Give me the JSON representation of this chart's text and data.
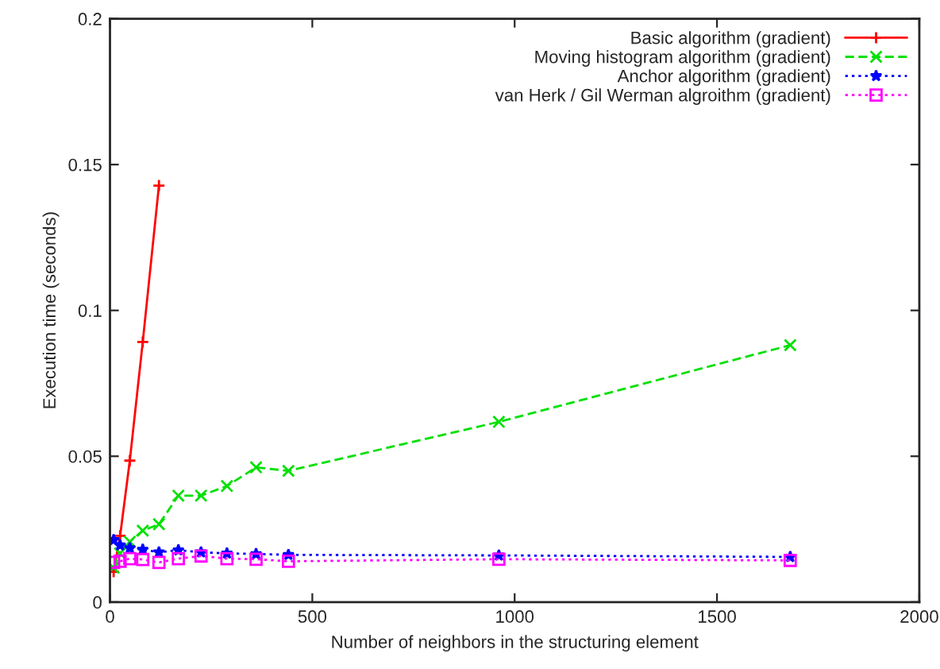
{
  "chart_data": {
    "type": "line",
    "xlabel": "Number of neighbors in the structuring element",
    "ylabel": "Execution time (seconds)",
    "x": [
      9,
      25,
      49,
      81,
      121,
      169,
      225,
      289,
      361,
      441,
      961,
      1681
    ],
    "series": [
      {
        "name": "Basic algorithm (gradient)",
        "color": "#ff0000",
        "marker": "cross",
        "line_style": "solid",
        "values": [
          0.0104,
          0.0227,
          0.0485,
          0.0892,
          0.1428,
          null,
          null,
          null,
          null,
          null,
          null,
          null
        ]
      },
      {
        "name": "Moving histogram algorithm (gradient)",
        "color": "#00e000",
        "marker": "x",
        "line_style": "dashed",
        "values": [
          0.0118,
          0.0167,
          0.0207,
          0.0245,
          0.0267,
          0.0365,
          0.0365,
          0.0398,
          0.0462,
          0.045,
          0.0618,
          0.0881
        ]
      },
      {
        "name": "Anchor algorithm (gradient)",
        "color": "#0000ff",
        "marker": "star",
        "line_style": "dotted",
        "values": [
          0.0213,
          0.0195,
          0.0185,
          0.018,
          0.0171,
          0.0178,
          0.0171,
          0.0167,
          0.0165,
          0.0162,
          0.016,
          0.0155
        ]
      },
      {
        "name": "van Herk / Gil Werman algroithm (gradient)",
        "color": "#ff00ff",
        "marker": "square",
        "line_style": "dotted",
        "values": [
          0.0136,
          0.014,
          0.0149,
          0.0146,
          0.0136,
          0.0149,
          0.0158,
          0.0149,
          0.0147,
          0.014,
          0.0147,
          0.0143
        ]
      }
    ],
    "xlim": [
      0,
      2000
    ],
    "xticks": [
      0,
      500,
      1000,
      1500,
      2000
    ],
    "ylim": [
      0,
      0.2
    ],
    "yticks": [
      0,
      0.05,
      0.1,
      0.15,
      0.2
    ],
    "grid": false,
    "legend": "top right"
  }
}
